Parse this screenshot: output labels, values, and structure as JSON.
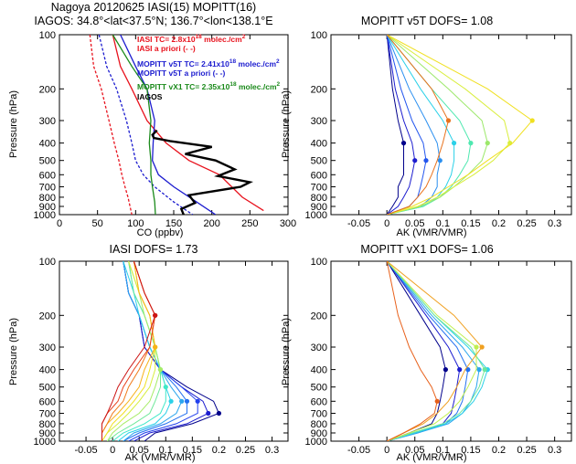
{
  "header": {
    "line1": "Nagoya  20120625  IASI(15)  MOPITT(16)",
    "line2": "IAGOS: 34.8°<lat<37.5°N; 136.7°<lon<138.1°E"
  },
  "charts": {
    "co": {
      "xlabel": "CO (ppbv)",
      "ylabel": "Pressure (hPa)",
      "legend": [
        {
          "text": "IASI TC= 2.8x10",
          "sup": "18",
          "tail": " molec./cm",
          "sup2": "2",
          "color": "#e8121d"
        },
        {
          "text": "IASI a priori (- -)",
          "color": "#e8121d"
        },
        {
          "text": "MOPITT v5T TC= 2.41x10",
          "sup": "18",
          "tail": " molec./cm",
          "sup2": "2",
          "color": "#1c1ccf"
        },
        {
          "text": "MOPITT v5T a priori (- -)",
          "color": "#1c1ccf"
        },
        {
          "text": "MOPITT vX1 TC= 2.35x10",
          "sup": "18",
          "tail": " molec./cm",
          "sup2": "2",
          "color": "#1b8a1b"
        },
        {
          "text": "IAGOS",
          "color": "#000000"
        }
      ]
    },
    "v5t": {
      "title": "MOPITT v5T DOFS= 1.08",
      "xlabel": "AK (VMR/VMR)",
      "ylabel": "Pressure (hPa)"
    },
    "iasi": {
      "title": "IASI DOFS= 1.73",
      "xlabel": "AK (VMR/VMR)",
      "ylabel": "Pressure (hPa)"
    },
    "vx1": {
      "title": "MOPITT vX1 DOFS= 1.06",
      "xlabel": "AK (VMR/VMR)",
      "ylabel": "Pressure (hPa)"
    }
  },
  "chart_data": [
    {
      "type": "line",
      "id": "co",
      "xlabel": "CO (ppbv)",
      "ylabel": "Pressure (hPa)",
      "xlim": [
        0,
        300
      ],
      "ylim": [
        1000,
        100
      ],
      "yscale": "log",
      "xticks": [
        0,
        50,
        100,
        150,
        200,
        250,
        300
      ],
      "yticks": [
        100,
        200,
        300,
        400,
        500,
        600,
        700,
        800,
        900,
        1000
      ],
      "series": [
        {
          "name": "IASI",
          "color": "#e8121d",
          "dash": false,
          "x": [
            70,
            80,
            95,
            115,
            140,
            170,
            210,
            240,
            268
          ],
          "y": [
            100,
            150,
            200,
            300,
            400,
            500,
            600,
            800,
            950
          ]
        },
        {
          "name": "IASI a priori",
          "color": "#e8121d",
          "dash": true,
          "x": [
            40,
            45,
            55,
            65,
            72,
            78,
            82,
            86,
            90,
            95
          ],
          "y": [
            100,
            150,
            200,
            300,
            400,
            500,
            600,
            700,
            800,
            1000
          ]
        },
        {
          "name": "MOPITT v5T",
          "color": "#1c1ccf",
          "dash": false,
          "x": [
            80,
            100,
            115,
            125,
            123,
            122,
            130,
            150,
            180,
            205
          ],
          "y": [
            100,
            150,
            200,
            300,
            400,
            500,
            600,
            700,
            850,
            1000
          ]
        },
        {
          "name": "MOPITT v5T a priori",
          "color": "#1c1ccf",
          "dash": true,
          "x": [
            52,
            62,
            75,
            88,
            95,
            100,
            110,
            125,
            150,
            175
          ],
          "y": [
            100,
            150,
            200,
            300,
            400,
            500,
            600,
            700,
            850,
            1000
          ]
        },
        {
          "name": "MOPITT vX1",
          "color": "#1b8a1b",
          "dash": false,
          "x": [
            70,
            95,
            115,
            120,
            118,
            120,
            120,
            122,
            125,
            126
          ],
          "y": [
            100,
            150,
            200,
            300,
            400,
            500,
            600,
            700,
            850,
            1000
          ]
        },
        {
          "name": "IAGOS",
          "color": "#000000",
          "dash": false,
          "x": [
            128,
            122,
            124,
            145,
            200,
            165,
            205,
            230,
            208,
            250,
            238,
            170,
            178,
            160,
            163
          ],
          "y": [
            340,
            360,
            375,
            390,
            420,
            460,
            500,
            560,
            610,
            660,
            700,
            780,
            860,
            930,
            1000
          ]
        }
      ]
    },
    {
      "type": "line",
      "id": "v5t",
      "title": "MOPITT v5T DOFS= 1.08",
      "xlabel": "AK (VMR/VMR)",
      "ylabel": "Pressure (hPa)",
      "xlim": [
        -0.1,
        0.33
      ],
      "ylim": [
        1000,
        100
      ],
      "yscale": "log",
      "xticks": [
        -0.05,
        0,
        0.05,
        0.1,
        0.15,
        0.2,
        0.25,
        0.3
      ],
      "yticks": [
        100,
        200,
        300,
        400,
        500,
        600,
        700,
        800,
        900,
        1000
      ],
      "pressures": [
        100,
        200,
        300,
        400,
        500,
        600,
        700,
        800,
        900,
        1000
      ],
      "kernels": [
        [
          0.0,
          0.01,
          0.02,
          0.03,
          0.03,
          0.03,
          0.02,
          0.02,
          0.01,
          0.0
        ],
        [
          0.0,
          0.015,
          0.03,
          0.045,
          0.05,
          0.045,
          0.04,
          0.03,
          0.02,
          0.0
        ],
        [
          0.0,
          0.025,
          0.045,
          0.065,
          0.07,
          0.065,
          0.06,
          0.055,
          0.04,
          0.0
        ],
        [
          0.0,
          0.04,
          0.07,
          0.09,
          0.095,
          0.09,
          0.09,
          0.08,
          0.06,
          0.0
        ],
        [
          0.0,
          0.06,
          0.1,
          0.12,
          0.12,
          0.115,
          0.105,
          0.09,
          0.065,
          0.0
        ],
        [
          0.0,
          0.08,
          0.13,
          0.15,
          0.145,
          0.13,
          0.115,
          0.095,
          0.065,
          0.0
        ],
        [
          0.0,
          0.11,
          0.17,
          0.18,
          0.17,
          0.145,
          0.12,
          0.095,
          0.06,
          0.0
        ],
        [
          0.0,
          0.14,
          0.21,
          0.22,
          0.19,
          0.155,
          0.12,
          0.09,
          0.055,
          0.0
        ],
        [
          0.0,
          0.18,
          0.26,
          0.225,
          0.18,
          0.145,
          0.11,
          0.08,
          0.045,
          0.0
        ],
        [
          0.0,
          0.08,
          0.11,
          0.1,
          0.09,
          0.08,
          0.07,
          0.055,
          0.04,
          0.0
        ]
      ],
      "colors": [
        "#00008b",
        "#1c1ccf",
        "#2255ee",
        "#2a8ff0",
        "#2bd1e8",
        "#4fe8b0",
        "#9ce86a",
        "#d9ee3c",
        "#f0e020",
        "#e8721d"
      ]
    },
    {
      "type": "line",
      "id": "iasi",
      "title": "IASI DOFS= 1.73",
      "xlabel": "AK (VMR/VMR)",
      "ylabel": "Pressure (hPa)",
      "xlim": [
        -0.1,
        0.33
      ],
      "ylim": [
        1000,
        100
      ],
      "yscale": "log",
      "xticks": [
        -0.05,
        0,
        0.05,
        0.1,
        0.15,
        0.2,
        0.25,
        0.3
      ],
      "yticks": [
        100,
        200,
        300,
        400,
        500,
        600,
        700,
        800,
        900,
        1000
      ],
      "pressures": [
        100,
        150,
        200,
        300,
        400,
        500,
        600,
        700,
        800,
        900,
        1000
      ],
      "kernels": [
        [
          0.02,
          0.03,
          0.05,
          0.06,
          0.09,
          0.14,
          0.19,
          0.2,
          0.15,
          0.08,
          0.06
        ],
        [
          0.02,
          0.03,
          0.05,
          0.06,
          0.09,
          0.13,
          0.17,
          0.18,
          0.14,
          0.07,
          0.04
        ],
        [
          0.02,
          0.03,
          0.05,
          0.07,
          0.09,
          0.13,
          0.16,
          0.16,
          0.12,
          0.06,
          0.03
        ],
        [
          0.02,
          0.03,
          0.05,
          0.07,
          0.09,
          0.12,
          0.14,
          0.14,
          0.1,
          0.05,
          0.02
        ],
        [
          0.02,
          0.03,
          0.05,
          0.07,
          0.09,
          0.11,
          0.13,
          0.12,
          0.09,
          0.04,
          0.02
        ],
        [
          0.02,
          0.04,
          0.05,
          0.07,
          0.09,
          0.1,
          0.11,
          0.1,
          0.08,
          0.03,
          0.01
        ],
        [
          0.03,
          0.04,
          0.06,
          0.08,
          0.09,
          0.1,
          0.1,
          0.09,
          0.06,
          0.02,
          0.0
        ],
        [
          0.03,
          0.04,
          0.06,
          0.08,
          0.09,
          0.09,
          0.08,
          0.07,
          0.04,
          0.01,
          -0.01
        ],
        [
          0.03,
          0.05,
          0.06,
          0.08,
          0.09,
          0.08,
          0.07,
          0.05,
          0.02,
          0.0,
          -0.01
        ],
        [
          0.03,
          0.05,
          0.07,
          0.08,
          0.08,
          0.07,
          0.05,
          0.03,
          0.01,
          -0.01,
          -0.02
        ],
        [
          0.04,
          0.05,
          0.07,
          0.08,
          0.07,
          0.06,
          0.04,
          0.02,
          0.0,
          -0.01,
          -0.02
        ],
        [
          0.04,
          0.05,
          0.07,
          0.08,
          0.06,
          0.05,
          0.03,
          0.01,
          -0.01,
          -0.02,
          -0.02
        ],
        [
          0.04,
          0.06,
          0.08,
          0.07,
          0.05,
          0.03,
          0.02,
          0.0,
          -0.01,
          -0.02,
          -0.02
        ],
        [
          0.04,
          0.06,
          0.08,
          0.07,
          0.04,
          0.02,
          0.01,
          -0.01,
          -0.02,
          -0.02,
          -0.02
        ],
        [
          0.04,
          0.06,
          0.08,
          0.06,
          0.03,
          0.01,
          0.0,
          -0.01,
          -0.02,
          -0.02,
          -0.02
        ]
      ],
      "colors": [
        "#00008b",
        "#1c1ccf",
        "#2240ee",
        "#2370f0",
        "#2aa5ee",
        "#2bd1e8",
        "#3fe8c8",
        "#6fe89a",
        "#a6ec66",
        "#d6ee3c",
        "#f0e020",
        "#f7b21a",
        "#f07a1a",
        "#e8401a",
        "#cc1515"
      ]
    },
    {
      "type": "line",
      "id": "vx1",
      "title": "MOPITT vX1 DOFS= 1.06",
      "xlabel": "AK (VMR/VMR)",
      "ylabel": "Pressure (hPa)",
      "xlim": [
        -0.1,
        0.33
      ],
      "ylim": [
        1000,
        100
      ],
      "yscale": "log",
      "xticks": [
        -0.05,
        0,
        0.05,
        0.1,
        0.15,
        0.2,
        0.25,
        0.3
      ],
      "yticks": [
        100,
        200,
        300,
        400,
        500,
        600,
        700,
        800,
        900,
        1000
      ],
      "pressures": [
        100,
        200,
        300,
        400,
        500,
        600,
        700,
        800,
        900,
        1000
      ],
      "kernels": [
        [
          0.0,
          0.06,
          0.095,
          0.105,
          0.1,
          0.095,
          0.09,
          0.08,
          0.04,
          0.0
        ],
        [
          0.0,
          0.07,
          0.11,
          0.13,
          0.125,
          0.12,
          0.115,
          0.1,
          0.05,
          0.0
        ],
        [
          0.0,
          0.075,
          0.125,
          0.145,
          0.14,
          0.135,
          0.125,
          0.105,
          0.055,
          0.0
        ],
        [
          0.0,
          0.08,
          0.135,
          0.165,
          0.16,
          0.15,
          0.135,
          0.11,
          0.055,
          0.0
        ],
        [
          0.0,
          0.085,
          0.145,
          0.18,
          0.17,
          0.155,
          0.135,
          0.105,
          0.05,
          0.0
        ],
        [
          0.0,
          0.085,
          0.15,
          0.175,
          0.165,
          0.15,
          0.13,
          0.1,
          0.045,
          0.0
        ],
        [
          0.0,
          0.09,
          0.16,
          0.16,
          0.145,
          0.13,
          0.11,
          0.085,
          0.04,
          0.0
        ],
        [
          0.0,
          0.12,
          0.17,
          0.14,
          0.125,
          0.11,
          0.09,
          0.065,
          0.03,
          0.0
        ],
        [
          0.0,
          0.02,
          0.04,
          0.06,
          0.08,
          0.09,
          0.085,
          0.06,
          0.03,
          0.0
        ]
      ],
      "colors": [
        "#00008b",
        "#1c1ccf",
        "#2270f0",
        "#2aa5ee",
        "#2bd1e8",
        "#6fe89a",
        "#c0ee50",
        "#f0a020",
        "#e8601a"
      ]
    }
  ]
}
